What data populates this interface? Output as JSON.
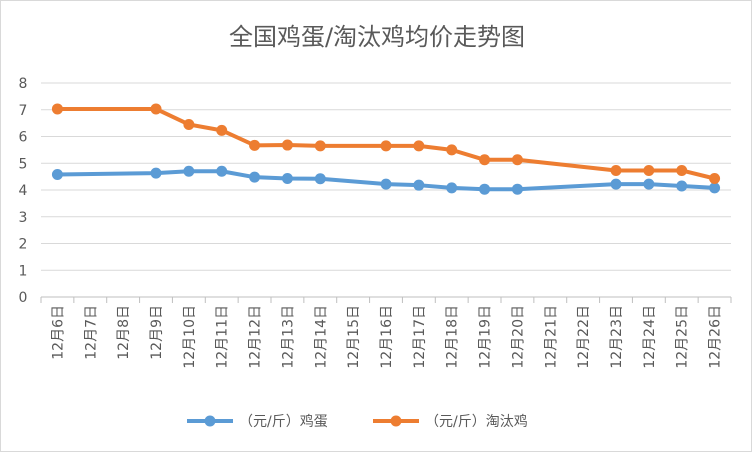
{
  "chart_data": {
    "type": "line",
    "title": "全国鸡蛋/淘汰鸡均价走势图",
    "categories": [
      "12月6日",
      "12月7日",
      "12月8日",
      "12月9日",
      "12月10日",
      "12月11日",
      "12月12日",
      "12月13日",
      "12月14日",
      "12月15日",
      "12月16日",
      "12月17日",
      "12月18日",
      "12月19日",
      "12月20日",
      "12月21日",
      "12月22日",
      "12月23日",
      "12月24日",
      "12月25日",
      "12月26日"
    ],
    "ylim": [
      0,
      8
    ],
    "yticks": [
      0,
      1,
      2,
      3,
      4,
      5,
      6,
      7,
      8
    ],
    "grid": true,
    "legend_position": "bottom",
    "series": [
      {
        "name": "（元/斤）鸡蛋",
        "color": "#5B9BD5",
        "values": [
          4.58,
          null,
          null,
          4.63,
          4.7,
          4.7,
          4.48,
          4.43,
          4.42,
          null,
          4.22,
          4.18,
          4.08,
          4.03,
          4.03,
          null,
          null,
          4.22,
          4.22,
          4.15,
          4.08
        ]
      },
      {
        "name": "（元/斤）淘汰鸡",
        "color": "#ED7D31",
        "values": [
          7.03,
          null,
          null,
          7.03,
          6.45,
          6.23,
          5.67,
          5.68,
          5.65,
          null,
          5.65,
          5.65,
          5.5,
          5.13,
          5.13,
          null,
          null,
          4.73,
          4.73,
          4.73,
          4.43
        ]
      }
    ]
  }
}
